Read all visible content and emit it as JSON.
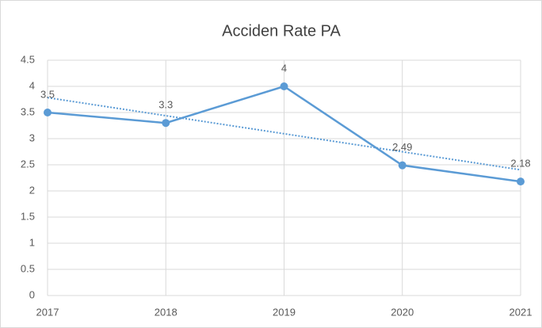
{
  "chart_data": {
    "type": "line",
    "title": "Acciden Rate PA",
    "x": [
      2017,
      2018,
      2019,
      2020,
      2021
    ],
    "series": [
      {
        "color": "#5b9bd5",
        "values": [
          3.5,
          3.3,
          4,
          2.49,
          2.18
        ]
      }
    ],
    "xlim": [
      2017,
      2021
    ],
    "xticks": [
      2017,
      2018,
      2019,
      2020,
      2021
    ],
    "ylim": [
      0,
      4.5
    ],
    "yticks": [
      0,
      0.5,
      1,
      1.5,
      2,
      2.5,
      3,
      3.5,
      4,
      4.5
    ],
    "grid": true,
    "trendline": "linear",
    "data_labels": true
  }
}
